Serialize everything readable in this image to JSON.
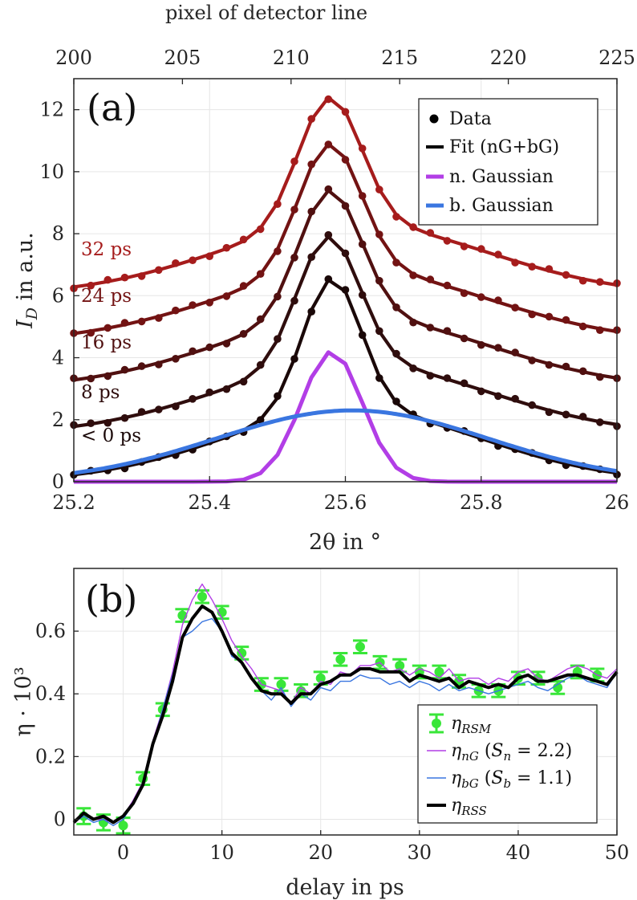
{
  "chart_data": [
    {
      "panel_label": "(a)",
      "type": "line",
      "xlabel": "2θ in °",
      "ylabel": "I_D in a.u.",
      "ylabel_main": "I",
      "ylabel_sub": "D",
      "ylabel_rest": " in a.u.",
      "top_xlabel": "pixel of detector line",
      "xlim": [
        25.2,
        26.0
      ],
      "ylim": [
        0,
        13
      ],
      "xticks": [
        "25.2",
        "25.4",
        "25.6",
        "25.8",
        "26"
      ],
      "yticks": [
        "0",
        "2",
        "4",
        "6",
        "8",
        "10",
        "12"
      ],
      "top_xlim": [
        200,
        225
      ],
      "top_xticks": [
        "200",
        "205",
        "210",
        "215",
        "220",
        "225"
      ],
      "grid": true,
      "legend_position": "top-right",
      "legend": [
        "Data",
        "Fit (nG+bG)",
        "n. Gaussian",
        "b. Gaussian"
      ],
      "series": [
        {
          "name": "< 0 ps",
          "label_prefix": "<",
          "label_rest": " 0 ps",
          "color": "#1a0808",
          "baseline": 0.0,
          "peak": 6.55,
          "center": 25.58,
          "sigma_narrow": 0.043,
          "wing_amp": 2.3,
          "wing_center": 25.61,
          "wing_sigma": 0.19
        },
        {
          "name": "8 ps",
          "color": "#2f0d0d",
          "baseline": 1.5,
          "peak": 7.9,
          "center": 25.575,
          "sigma_narrow": 0.046,
          "wing_amp": 2.3,
          "wing_center": 25.61,
          "wing_sigma": 0.2
        },
        {
          "name": "16 ps",
          "color": "#501010",
          "baseline": 3.0,
          "peak": 9.4,
          "center": 25.577,
          "sigma_narrow": 0.046,
          "wing_amp": 2.3,
          "wing_center": 25.61,
          "wing_sigma": 0.2
        },
        {
          "name": "24 ps",
          "color": "#731313",
          "baseline": 4.5,
          "peak": 10.9,
          "center": 25.577,
          "sigma_narrow": 0.046,
          "wing_amp": 2.3,
          "wing_center": 25.61,
          "wing_sigma": 0.2
        },
        {
          "name": "32 ps",
          "color": "#a61c1c",
          "baseline": 6.0,
          "peak": 12.4,
          "center": 25.577,
          "sigma_narrow": 0.046,
          "wing_amp": 2.3,
          "wing_center": 25.61,
          "wing_sigma": 0.2
        }
      ],
      "narrow_gaussian": {
        "name": "n. Gaussian",
        "color": "#b23ee6",
        "amplitude": 4.2,
        "center": 25.58,
        "sigma": 0.045
      },
      "broad_gaussian": {
        "name": "b. Gaussian",
        "color": "#3a76e0",
        "amplitude": 2.3,
        "center": 25.61,
        "sigma": 0.2
      }
    },
    {
      "panel_label": "(b)",
      "type": "line",
      "xlabel": "delay in ps",
      "ylabel": "η · 10³",
      "xlim": [
        -5,
        50
      ],
      "ylim": [
        -0.05,
        0.8
      ],
      "xticks": [
        "0",
        "10",
        "20",
        "30",
        "40",
        "50"
      ],
      "yticks": [
        "0",
        "0.2",
        "0.4",
        "0.6"
      ],
      "grid": true,
      "legend_position": "bottom-right",
      "legend": [
        "η_RSM",
        "η_nG (S_n = 2.2)",
        "η_bG (S_b = 1.1)",
        "η_RSS"
      ],
      "x": [
        -5,
        -4,
        -3,
        -2,
        -1,
        0,
        1,
        2,
        3,
        4,
        5,
        6,
        7,
        8,
        9,
        10,
        11,
        12,
        13,
        14,
        15,
        16,
        17,
        18,
        19,
        20,
        21,
        22,
        23,
        24,
        25,
        26,
        27,
        28,
        29,
        30,
        31,
        32,
        33,
        34,
        35,
        36,
        37,
        38,
        39,
        40,
        41,
        42,
        43,
        44,
        45,
        46,
        47,
        48,
        49,
        50
      ],
      "series": [
        {
          "name": "η_RSM",
          "color": "#39e639",
          "type": "errorbar",
          "x": [
            -4,
            -2,
            0,
            2,
            4,
            6,
            8,
            10,
            12,
            14,
            16,
            18,
            20,
            22,
            24,
            26,
            28,
            30,
            32,
            34,
            36,
            38,
            40,
            42,
            44,
            46,
            48
          ],
          "values": [
            0.01,
            -0.01,
            -0.02,
            0.13,
            0.35,
            0.65,
            0.71,
            0.66,
            0.53,
            0.43,
            0.43,
            0.41,
            0.45,
            0.51,
            0.55,
            0.5,
            0.49,
            0.47,
            0.47,
            0.44,
            0.41,
            0.41,
            0.45,
            0.45,
            0.42,
            0.47,
            0.46
          ],
          "errors": [
            0.025,
            0.025,
            0.025,
            0.02,
            0.02,
            0.02,
            0.02,
            0.02,
            0.02,
            0.02,
            0.02,
            0.02,
            0.02,
            0.02,
            0.02,
            0.02,
            0.02,
            0.02,
            0.02,
            0.02,
            0.02,
            0.02,
            0.02,
            0.02,
            0.02,
            0.02,
            0.02
          ]
        },
        {
          "name": "η_nG (S_n = 2.2)",
          "color": "#b23ee6",
          "values": [
            -0.01,
            0.02,
            0.0,
            0.0,
            -0.01,
            0.01,
            0.06,
            0.12,
            0.25,
            0.35,
            0.47,
            0.62,
            0.7,
            0.75,
            0.7,
            0.64,
            0.57,
            0.52,
            0.48,
            0.43,
            0.42,
            0.41,
            0.37,
            0.42,
            0.4,
            0.44,
            0.43,
            0.47,
            0.46,
            0.49,
            0.49,
            0.5,
            0.47,
            0.48,
            0.46,
            0.48,
            0.47,
            0.45,
            0.48,
            0.44,
            0.45,
            0.45,
            0.43,
            0.45,
            0.44,
            0.47,
            0.48,
            0.45,
            0.44,
            0.46,
            0.48,
            0.49,
            0.48,
            0.46,
            0.45,
            0.48
          ]
        },
        {
          "name": "η_bG (S_b = 1.1)",
          "color": "#3a76e0",
          "values": [
            -0.01,
            0.01,
            -0.01,
            0.0,
            -0.02,
            0.0,
            0.05,
            0.11,
            0.24,
            0.35,
            0.46,
            0.58,
            0.6,
            0.63,
            0.64,
            0.6,
            0.52,
            0.5,
            0.45,
            0.41,
            0.38,
            0.42,
            0.36,
            0.4,
            0.38,
            0.42,
            0.41,
            0.44,
            0.44,
            0.46,
            0.45,
            0.45,
            0.43,
            0.44,
            0.42,
            0.44,
            0.43,
            0.41,
            0.43,
            0.41,
            0.42,
            0.41,
            0.4,
            0.41,
            0.42,
            0.43,
            0.44,
            0.42,
            0.41,
            0.43,
            0.45,
            0.46,
            0.44,
            0.43,
            0.42,
            0.47
          ]
        },
        {
          "name": "η_RSS",
          "color": "#000000",
          "values": [
            -0.01,
            0.02,
            0.0,
            0.01,
            -0.01,
            0.01,
            0.05,
            0.11,
            0.24,
            0.33,
            0.44,
            0.58,
            0.64,
            0.68,
            0.66,
            0.6,
            0.53,
            0.5,
            0.45,
            0.41,
            0.4,
            0.4,
            0.37,
            0.4,
            0.4,
            0.43,
            0.44,
            0.46,
            0.46,
            0.48,
            0.48,
            0.47,
            0.47,
            0.47,
            0.44,
            0.46,
            0.45,
            0.44,
            0.45,
            0.42,
            0.44,
            0.43,
            0.42,
            0.43,
            0.42,
            0.45,
            0.46,
            0.44,
            0.44,
            0.45,
            0.46,
            0.46,
            0.45,
            0.44,
            0.43,
            0.47
          ]
        }
      ]
    }
  ]
}
